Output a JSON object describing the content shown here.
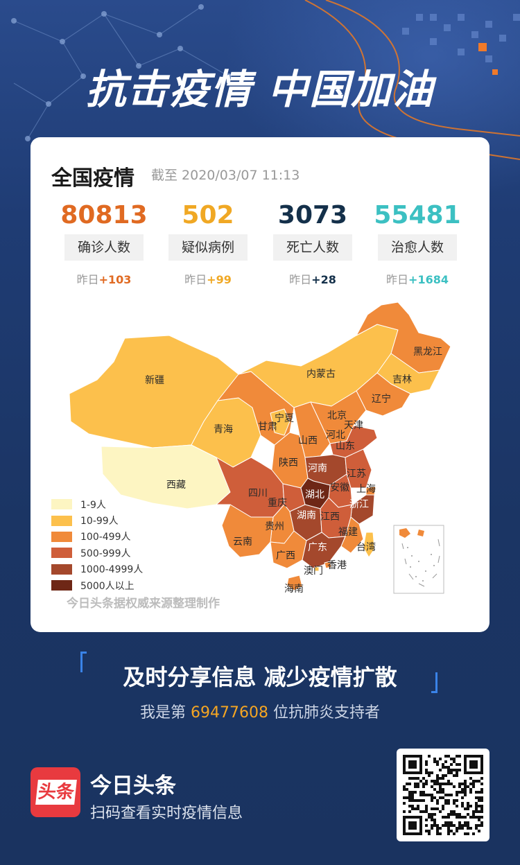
{
  "header": {
    "headline": "抗击疫情 中国加油"
  },
  "card": {
    "title": "全国疫情",
    "updated": "截至 2020/03/07 11:13"
  },
  "stats": [
    {
      "value": "80813",
      "label": "确诊人数",
      "delta_prefix": "昨日",
      "delta": "+103",
      "color": "#e06a22"
    },
    {
      "value": "502",
      "label": "疑似病例",
      "delta_prefix": "昨日",
      "delta": "+99",
      "color": "#f0a824"
    },
    {
      "value": "3073",
      "label": "死亡人数",
      "delta_prefix": "昨日",
      "delta": "+28",
      "color": "#14304a"
    },
    {
      "value": "55481",
      "label": "治愈人数",
      "delta_prefix": "昨日",
      "delta": "+1684",
      "color": "#3cc0c2"
    }
  ],
  "map": {
    "provinces": [
      {
        "name": "新疆",
        "level": "10-99人"
      },
      {
        "name": "西藏",
        "level": "1-9人"
      },
      {
        "name": "青海",
        "level": "10-99人"
      },
      {
        "name": "甘肃",
        "level": "100-499人"
      },
      {
        "name": "内蒙古",
        "level": "10-99人"
      },
      {
        "name": "黑龙江",
        "level": "100-499人"
      },
      {
        "name": "吉林",
        "level": "10-99人"
      },
      {
        "name": "辽宁",
        "level": "100-499人"
      },
      {
        "name": "宁夏",
        "level": "10-99人"
      },
      {
        "name": "北京",
        "level": "100-499人"
      },
      {
        "name": "天津",
        "level": "100-499人"
      },
      {
        "name": "河北",
        "level": "100-499人"
      },
      {
        "name": "山西",
        "level": "100-499人"
      },
      {
        "name": "山东",
        "level": "500-999人"
      },
      {
        "name": "陕西",
        "level": "100-499人"
      },
      {
        "name": "河南",
        "level": "1000-4999人"
      },
      {
        "name": "江苏",
        "level": "500-999人"
      },
      {
        "name": "上海",
        "level": "100-499人"
      },
      {
        "name": "安徽",
        "level": "500-999人"
      },
      {
        "name": "四川",
        "level": "500-999人"
      },
      {
        "name": "重庆",
        "level": "500-999人"
      },
      {
        "name": "湖北",
        "level": "5000人以上"
      },
      {
        "name": "浙江",
        "level": "1000-4999人"
      },
      {
        "name": "湖南",
        "level": "1000-4999人"
      },
      {
        "name": "江西",
        "level": "500-999人"
      },
      {
        "name": "贵州",
        "level": "100-499人"
      },
      {
        "name": "云南",
        "level": "100-499人"
      },
      {
        "name": "福建",
        "level": "100-499人"
      },
      {
        "name": "台湾",
        "level": "10-99人"
      },
      {
        "name": "广西",
        "level": "100-499人"
      },
      {
        "name": "广东",
        "level": "1000-4999人"
      },
      {
        "name": "香港",
        "level": "100-499人"
      },
      {
        "name": "澳门",
        "level": "10-99人"
      },
      {
        "name": "海南",
        "level": "100-499人"
      }
    ],
    "legend": [
      {
        "label": "1-9人",
        "color": "#fdf5c2"
      },
      {
        "label": "10-99人",
        "color": "#fcc04c"
      },
      {
        "label": "100-499人",
        "color": "#f08a3a"
      },
      {
        "label": "500-999人",
        "color": "#cf5e3a"
      },
      {
        "label": "1000-4999人",
        "color": "#a4482c"
      },
      {
        "label": "5000人以上",
        "color": "#6e2716"
      }
    ],
    "source": "今日头条据权威来源整理制作"
  },
  "footer": {
    "slogan": "及时分享信息 减少疫情扩散",
    "supporter_prefix": "我是第 ",
    "supporter_number": "69477608",
    "supporter_suffix": " 位抗肺炎支持者",
    "app_logo_text": "头条",
    "app_name": "今日头条",
    "app_sub": "扫码查看实时疫情信息"
  }
}
